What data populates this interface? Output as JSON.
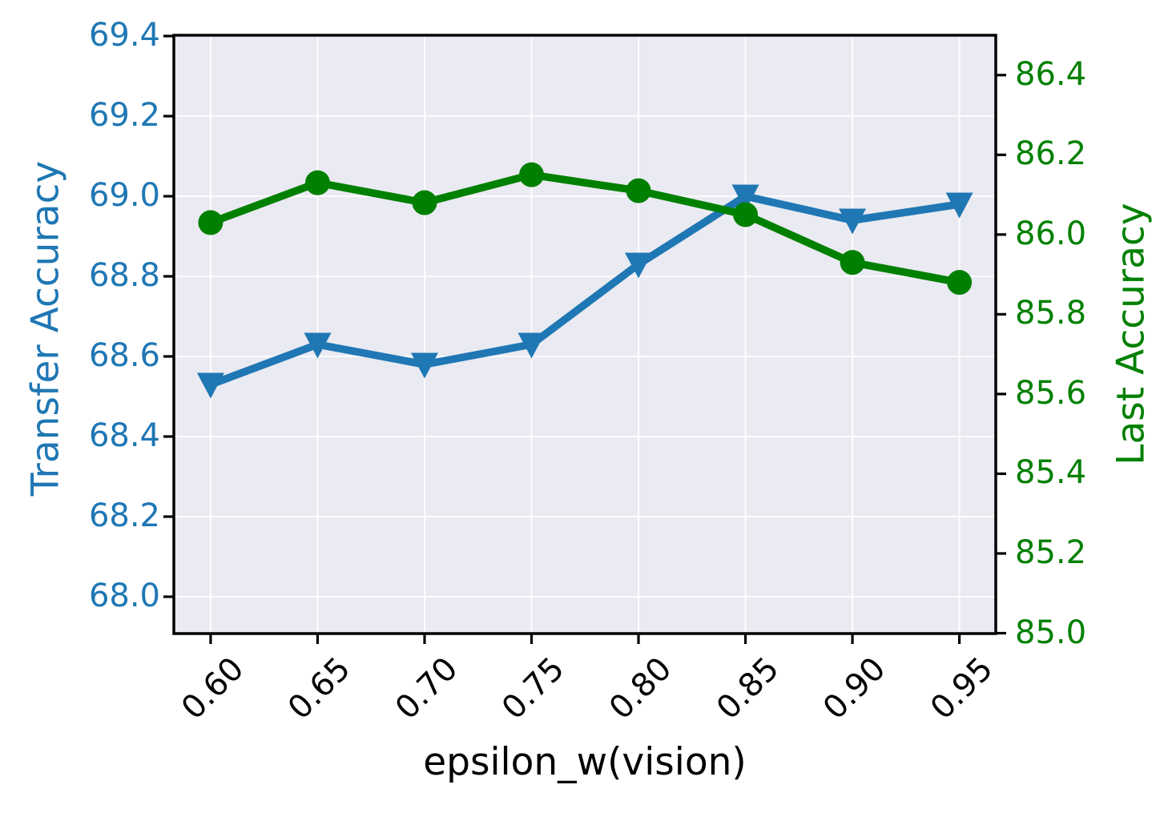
{
  "figure": {
    "background": "#ffffff",
    "plot_background": "#eaeaf2",
    "grid_color": "#ffffff",
    "spine_color": "#000000",
    "tick_color": "#000000"
  },
  "chart_data": {
    "type": "line",
    "title": "",
    "xlabel": "epsilon_w(vision)",
    "grid": true,
    "legend_position": "none",
    "x": [
      0.6,
      0.65,
      0.7,
      0.75,
      0.8,
      0.85,
      0.9,
      0.95
    ],
    "x_tick_labels": [
      "0.60",
      "0.65",
      "0.70",
      "0.75",
      "0.80",
      "0.85",
      "0.90",
      "0.95"
    ],
    "xlim": [
      0.5828,
      0.967
    ],
    "left_axis": {
      "label": "Transfer Accuracy",
      "color": "#1f77b4",
      "ticks": [
        69.4,
        69.2,
        69.0,
        68.8,
        68.6,
        68.4,
        68.2,
        68.0
      ],
      "tick_labels": [
        "69.4",
        "69.2",
        "69.0",
        "68.8",
        "68.6",
        "68.4",
        "68.2",
        "68.0"
      ],
      "range": [
        67.908,
        69.402
      ]
    },
    "right_axis": {
      "label": "Last Accuracy",
      "color": "#008000",
      "ticks": [
        86.4,
        86.2,
        86.0,
        85.8,
        85.6,
        85.4,
        85.2,
        85.0
      ],
      "tick_labels": [
        "86.4",
        "86.2",
        "86.0",
        "85.8",
        "85.6",
        "85.4",
        "85.2",
        "85.0"
      ],
      "range": [
        84.999,
        86.5
      ]
    },
    "series": [
      {
        "name": "Transfer Accuracy",
        "axis": "left",
        "color": "#1f77b4",
        "marker": "triangle-down",
        "values": [
          68.53,
          68.63,
          68.58,
          68.63,
          68.83,
          69.0,
          68.94,
          68.98
        ]
      },
      {
        "name": "Last Accuracy",
        "axis": "right",
        "color": "#008000",
        "marker": "circle",
        "values": [
          86.03,
          86.13,
          86.08,
          86.15,
          86.11,
          86.05,
          85.93,
          85.88
        ]
      }
    ]
  }
}
